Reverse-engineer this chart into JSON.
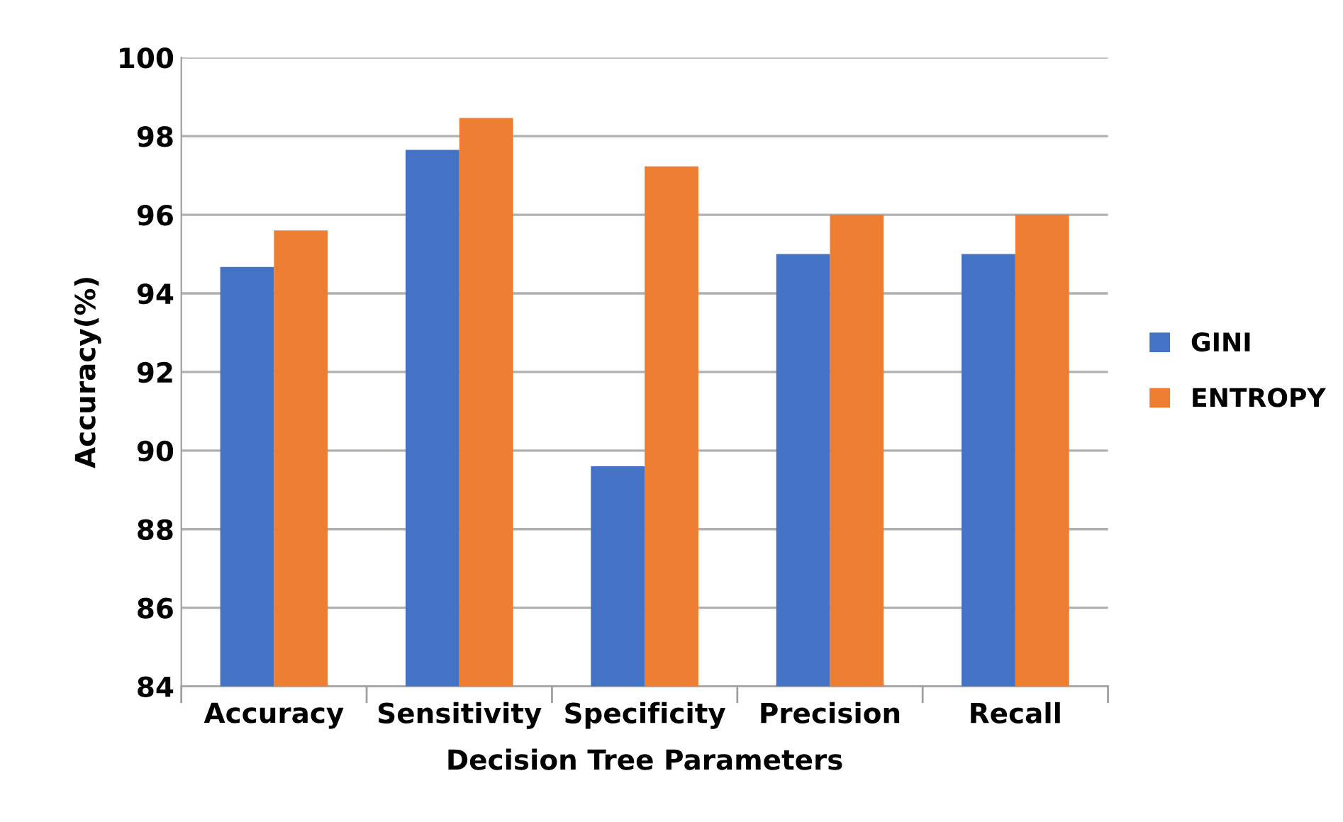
{
  "chart_data": {
    "type": "bar",
    "xlabel": "Decision Tree Parameters",
    "ylabel": "Accuracy(%)",
    "categories": [
      "Accuracy",
      "Sensitivity",
      "Specificity",
      "Precision",
      "Recall"
    ],
    "series": [
      {
        "name": "GINI",
        "color": "#4472c4",
        "values": [
          94.67,
          97.65,
          89.6,
          95.0,
          95.0
        ]
      },
      {
        "name": "ENTROPY",
        "color": "#ed7d31",
        "values": [
          95.6,
          98.46,
          97.23,
          96.0,
          96.0
        ]
      }
    ],
    "ylim": [
      84,
      100
    ],
    "yticks": [
      84,
      86,
      88,
      90,
      92,
      94,
      96,
      98,
      100
    ],
    "grid": "y",
    "legend": "right"
  }
}
